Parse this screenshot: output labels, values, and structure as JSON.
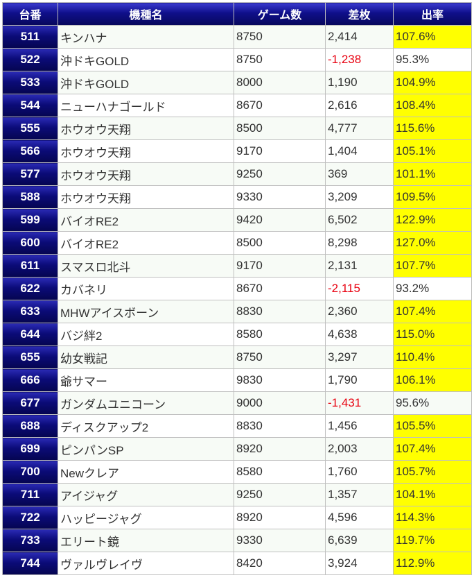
{
  "columns": [
    "台番",
    "機種名",
    "ゲーム数",
    "差枚",
    "出率"
  ],
  "colors": {
    "header_bg": "#0a0a80",
    "highlight": "#ffff00",
    "negative": "#e8000f"
  },
  "rows": [
    {
      "num": "511",
      "name": "キンハナ",
      "games": "8750",
      "diff": "2,414",
      "rate": "107.6%",
      "negative": false,
      "highlight": true
    },
    {
      "num": "522",
      "name": "沖ドキGOLD",
      "games": "8750",
      "diff": "-1,238",
      "rate": "95.3%",
      "negative": true,
      "highlight": false
    },
    {
      "num": "533",
      "name": "沖ドキGOLD",
      "games": "8000",
      "diff": "1,190",
      "rate": "104.9%",
      "negative": false,
      "highlight": true
    },
    {
      "num": "544",
      "name": "ニューハナゴールド",
      "games": "8670",
      "diff": "2,616",
      "rate": "108.4%",
      "negative": false,
      "highlight": true
    },
    {
      "num": "555",
      "name": "ホウオウ天翔",
      "games": "8500",
      "diff": "4,777",
      "rate": "115.6%",
      "negative": false,
      "highlight": true
    },
    {
      "num": "566",
      "name": "ホウオウ天翔",
      "games": "9170",
      "diff": "1,404",
      "rate": "105.1%",
      "negative": false,
      "highlight": true
    },
    {
      "num": "577",
      "name": "ホウオウ天翔",
      "games": "9250",
      "diff": "369",
      "rate": "101.1%",
      "negative": false,
      "highlight": true
    },
    {
      "num": "588",
      "name": "ホウオウ天翔",
      "games": "9330",
      "diff": "3,209",
      "rate": "109.5%",
      "negative": false,
      "highlight": true
    },
    {
      "num": "599",
      "name": "バイオRE2",
      "games": "9420",
      "diff": "6,502",
      "rate": "122.9%",
      "negative": false,
      "highlight": true
    },
    {
      "num": "600",
      "name": "バイオRE2",
      "games": "8500",
      "diff": "8,298",
      "rate": "127.0%",
      "negative": false,
      "highlight": true
    },
    {
      "num": "611",
      "name": "スマスロ北斗",
      "games": "9170",
      "diff": "2,131",
      "rate": "107.7%",
      "negative": false,
      "highlight": true
    },
    {
      "num": "622",
      "name": "カバネリ",
      "games": "8670",
      "diff": "-2,115",
      "rate": "93.2%",
      "negative": true,
      "highlight": false
    },
    {
      "num": "633",
      "name": "MHWアイスボーン",
      "games": "8830",
      "diff": "2,360",
      "rate": "107.4%",
      "negative": false,
      "highlight": true
    },
    {
      "num": "644",
      "name": "バジ絆2",
      "games": "8580",
      "diff": "4,638",
      "rate": "115.0%",
      "negative": false,
      "highlight": true
    },
    {
      "num": "655",
      "name": "幼女戦記",
      "games": "8750",
      "diff": "3,297",
      "rate": "110.4%",
      "negative": false,
      "highlight": true
    },
    {
      "num": "666",
      "name": "爺サマー",
      "games": "9830",
      "diff": "1,790",
      "rate": "106.1%",
      "negative": false,
      "highlight": true
    },
    {
      "num": "677",
      "name": "ガンダムユニコーン",
      "games": "9000",
      "diff": "-1,431",
      "rate": "95.6%",
      "negative": true,
      "highlight": false
    },
    {
      "num": "688",
      "name": "ディスクアップ2",
      "games": "8830",
      "diff": "1,456",
      "rate": "105.5%",
      "negative": false,
      "highlight": true
    },
    {
      "num": "699",
      "name": "ピンパンSP",
      "games": "8920",
      "diff": "2,003",
      "rate": "107.4%",
      "negative": false,
      "highlight": true
    },
    {
      "num": "700",
      "name": "Newクレア",
      "games": "8580",
      "diff": "1,760",
      "rate": "105.7%",
      "negative": false,
      "highlight": true
    },
    {
      "num": "711",
      "name": "アイジャグ",
      "games": "9250",
      "diff": "1,357",
      "rate": "104.1%",
      "negative": false,
      "highlight": true
    },
    {
      "num": "722",
      "name": "ハッピージャグ",
      "games": "8920",
      "diff": "4,596",
      "rate": "114.3%",
      "negative": false,
      "highlight": true
    },
    {
      "num": "733",
      "name": "エリート鏡",
      "games": "9330",
      "diff": "6,639",
      "rate": "119.7%",
      "negative": false,
      "highlight": true
    },
    {
      "num": "744",
      "name": "ヴァルヴレイヴ",
      "games": "8420",
      "diff": "3,924",
      "rate": "112.9%",
      "negative": false,
      "highlight": true
    }
  ]
}
